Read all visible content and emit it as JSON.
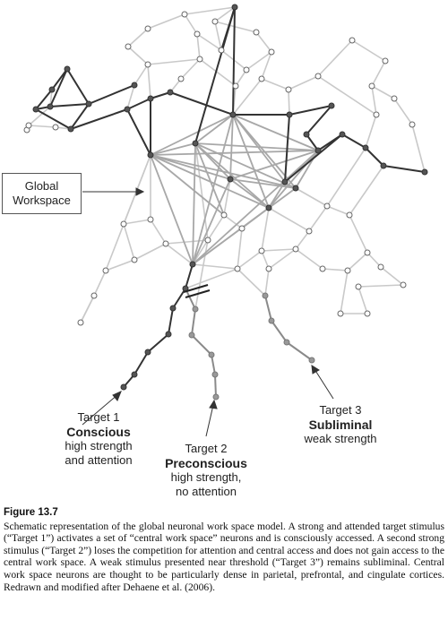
{
  "workspace_label": {
    "line1": "Global",
    "line2": "Workspace"
  },
  "targets": [
    {
      "line1": "Target 1",
      "bold": "Conscious",
      "line3": "high strength",
      "line4": "and attention"
    },
    {
      "line1": "Target 2",
      "bold": "Preconscious",
      "line3": "high strength,",
      "line4": "no attention"
    },
    {
      "line1": "Target 3",
      "bold": "Subliminal",
      "line3": "weak strength",
      "line4": ""
    }
  ],
  "caption": {
    "figure_number": "Figure 13.7",
    "text": "Schematic representation of the global neuronal work space model. A strong and attended target stimulus (“Target 1”) activates a set of “central work space” neurons and is consciously accessed. A second strong stimulus (“Target 2”) loses the competition for attention and central access and does not gain access to the central work space. A weak stimulus presented near threshold (“Target 3”) remains subliminal. Central work space neurons are thought to be particularly dense in parietal, prefrontal, and cingulate cortices. Redrawn and modified after Dehaene et al. (2006)."
  }
}
